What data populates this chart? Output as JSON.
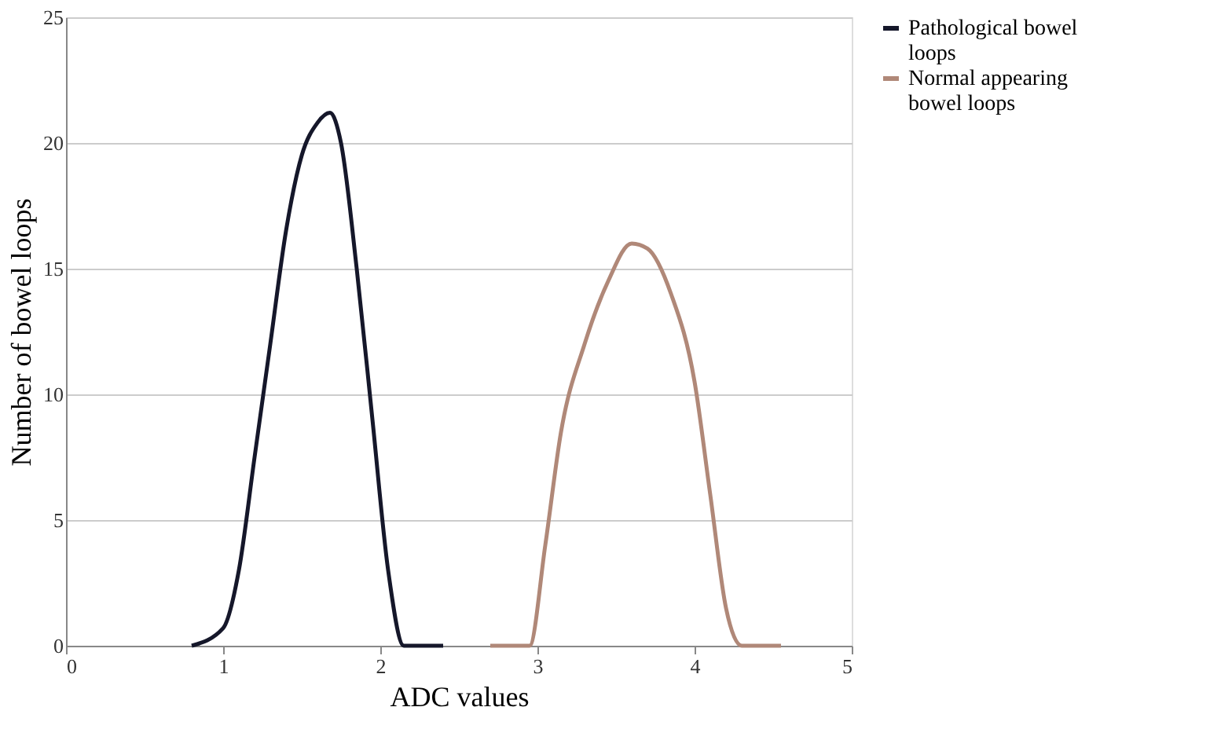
{
  "chart_data": {
    "type": "line",
    "xlabel": "ADC values",
    "ylabel": "Number of bowel loops",
    "xlim": [
      0,
      5
    ],
    "xticks": [
      0,
      1,
      2,
      3,
      4,
      5
    ],
    "ylim": [
      0,
      25
    ],
    "yticks": [
      0,
      5,
      10,
      15,
      20,
      25
    ],
    "grid": "y",
    "legend": "right",
    "line_style": "solid",
    "marker": "none",
    "series": [
      {
        "name": "Pathological bowel loops",
        "color": "#15172a",
        "x": [
          0.8,
          1.0,
          1.1,
          1.2,
          1.3,
          1.4,
          1.5,
          1.6,
          1.68,
          1.75,
          1.85,
          1.95,
          2.05,
          2.15,
          2.2,
          2.3,
          2.4
        ],
        "values": [
          0,
          0.7,
          3,
          7.5,
          12,
          16.5,
          19.5,
          20.8,
          21.2,
          20,
          15,
          9,
          3,
          0,
          0,
          0,
          0
        ]
      },
      {
        "name": "Normal appearing bowel loops",
        "color": "#b08878",
        "x": [
          2.7,
          2.85,
          2.95,
          3.05,
          3.15,
          3.3,
          3.45,
          3.6,
          3.7,
          3.85,
          4.0,
          4.1,
          4.2,
          4.3,
          4.4,
          4.55
        ],
        "values": [
          0,
          0,
          0,
          4,
          8.5,
          12,
          14.5,
          16,
          15.8,
          14,
          10.5,
          6,
          1.5,
          0,
          0,
          0
        ]
      }
    ]
  }
}
